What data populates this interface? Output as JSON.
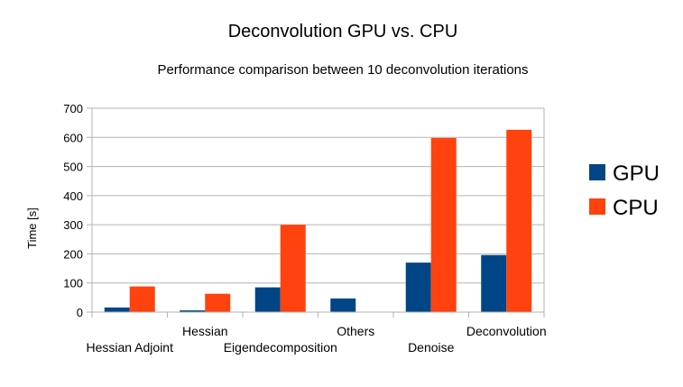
{
  "chart_data": {
    "type": "bar",
    "title": "Deconvolution GPU vs. CPU",
    "subtitle": "Performance comparison between 10 deconvolution iterations",
    "xlabel": "",
    "ylabel": "Time [s]",
    "ylim": [
      0,
      700
    ],
    "yticks": [
      0,
      100,
      200,
      300,
      400,
      500,
      600,
      700
    ],
    "grid": true,
    "legend_position": "right",
    "categories": [
      "Hessian Adjoint",
      "Hessian",
      "Eigendecomposition",
      "Others",
      "Denoise",
      "Deconvolution"
    ],
    "series": [
      {
        "name": "GPU",
        "color": "#004586",
        "values": [
          16,
          6,
          85,
          47,
          170,
          196
        ]
      },
      {
        "name": "CPU",
        "color": "#ff420e",
        "values": [
          88,
          63,
          300,
          0,
          598,
          626
        ]
      }
    ]
  }
}
